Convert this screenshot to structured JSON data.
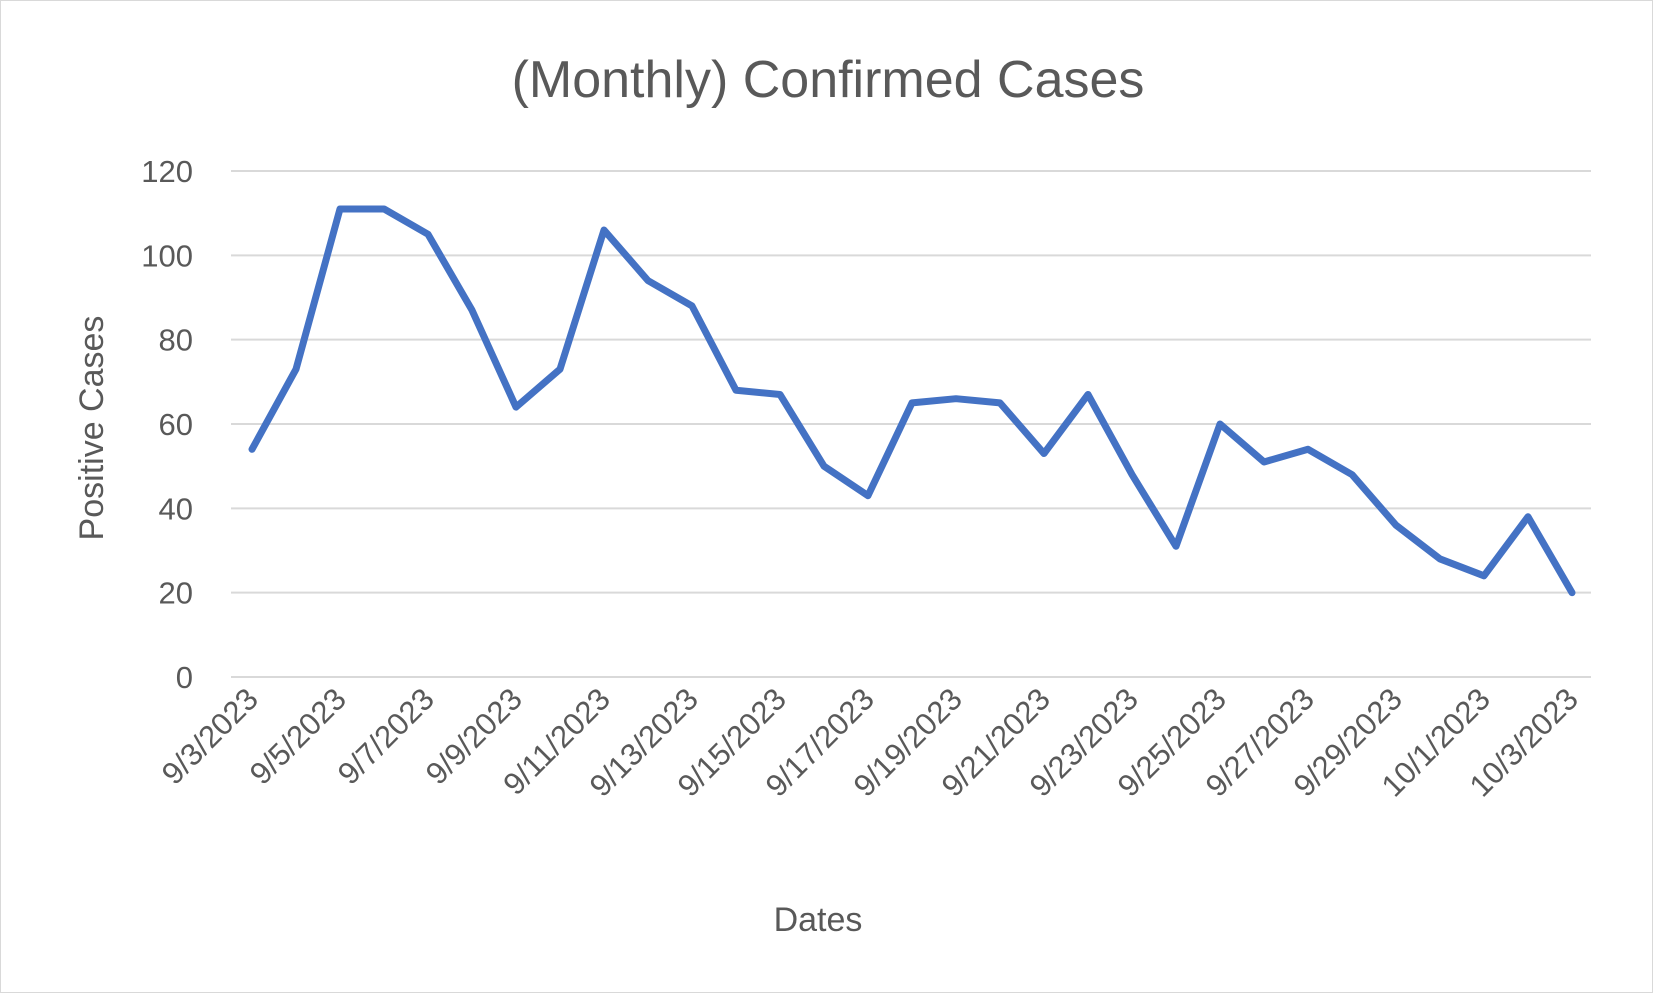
{
  "chart_data": {
    "type": "line",
    "title": "(Monthly) Confirmed Cases",
    "xlabel": "Dates",
    "ylabel": "Positive Cases",
    "ylim": [
      0,
      120
    ],
    "yticks": [
      0,
      20,
      40,
      60,
      80,
      100,
      120
    ],
    "grid": true,
    "legend": "none",
    "x": [
      "9/3/2023",
      "9/4/2023",
      "9/5/2023",
      "9/6/2023",
      "9/7/2023",
      "9/8/2023",
      "9/9/2023",
      "9/10/2023",
      "9/11/2023",
      "9/12/2023",
      "9/13/2023",
      "9/14/2023",
      "9/15/2023",
      "9/16/2023",
      "9/17/2023",
      "9/18/2023",
      "9/19/2023",
      "9/20/2023",
      "9/21/2023",
      "9/22/2023",
      "9/23/2023",
      "9/24/2023",
      "9/25/2023",
      "9/26/2023",
      "9/27/2023",
      "9/28/2023",
      "9/29/2023",
      "9/30/2023",
      "10/1/2023",
      "10/2/2023",
      "10/3/2023"
    ],
    "xtick_labels": [
      "9/3/2023",
      "9/5/2023",
      "9/7/2023",
      "9/9/2023",
      "9/11/2023",
      "9/13/2023",
      "9/15/2023",
      "9/17/2023",
      "9/19/2023",
      "9/21/2023",
      "9/23/2023",
      "9/25/2023",
      "9/27/2023",
      "9/29/2023",
      "10/1/2023",
      "10/3/2023"
    ],
    "series": [
      {
        "color": "#4472c4",
        "values": [
          54,
          73,
          111,
          111,
          105,
          87,
          64,
          73,
          106,
          94,
          88,
          68,
          67,
          50,
          43,
          65,
          66,
          65,
          53,
          67,
          48,
          31,
          60,
          51,
          54,
          48,
          36,
          28,
          24,
          38,
          20
        ]
      }
    ]
  }
}
